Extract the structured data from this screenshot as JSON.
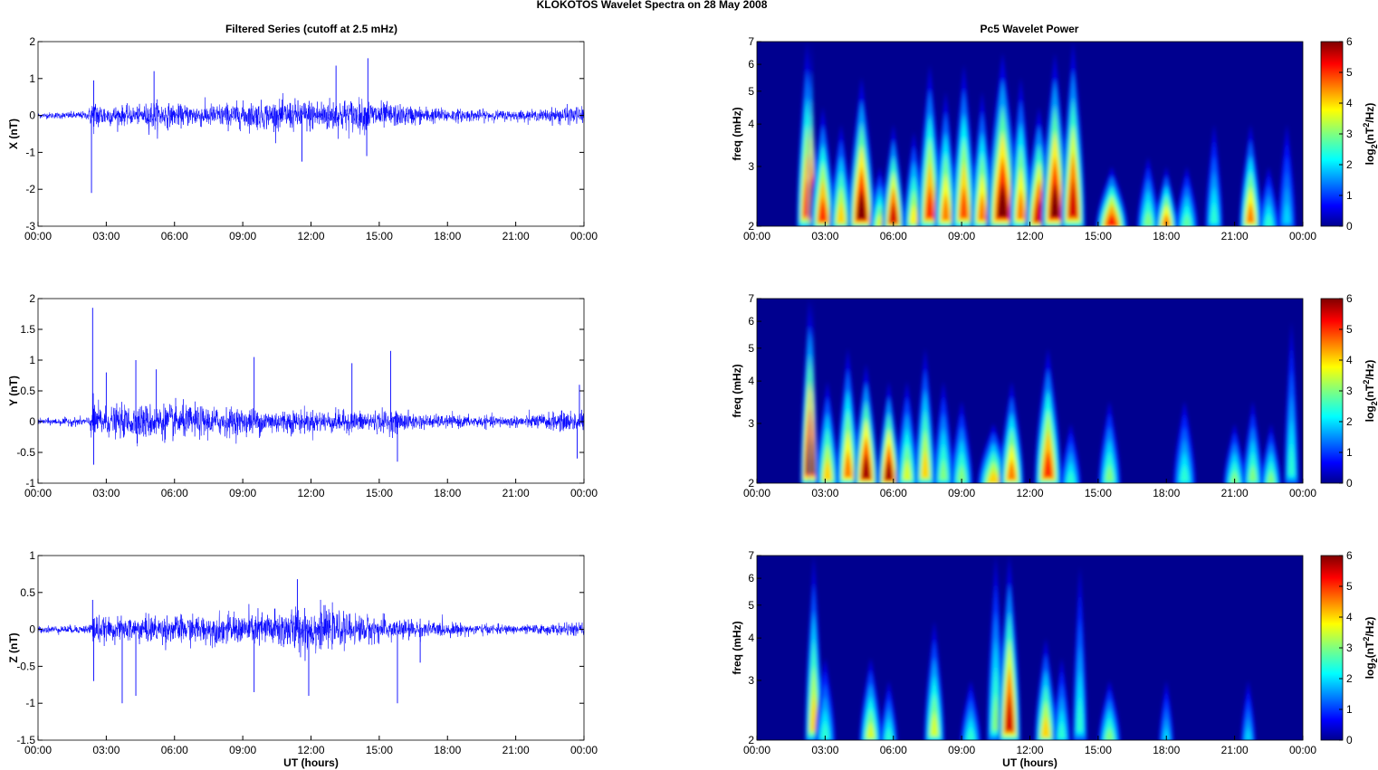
{
  "figure": {
    "title": "KLOKOTOS Wavelet Spectra on 28 May      2008",
    "left_title": "Filtered Series (cutoff at 2.5 mHz)",
    "right_title": "Pc5 Wavelet Power"
  },
  "colors": {
    "trace": "#0000ff",
    "axis": "#000000",
    "colormap": "jet",
    "background_power": "#00008f"
  },
  "chart_data": [
    {
      "type": "line",
      "panel": "X",
      "ylabel": "X (nT)",
      "xlabel": "",
      "ylim": [
        -3,
        2
      ],
      "yticks": [
        "2",
        "1",
        "0",
        "-1",
        "-2",
        "-3"
      ],
      "xticks": [
        "00:00",
        "03:00",
        "06:00",
        "09:00",
        "12:00",
        "15:00",
        "18:00",
        "21:00",
        "00:00"
      ],
      "xlim_hours": [
        0,
        24
      ],
      "grid": false,
      "trace": {
        "baseline": 0,
        "env_hours": [
          0,
          2.2,
          2.4,
          3,
          4.5,
          5,
          6,
          8,
          10,
          11.5,
          13,
          14.5,
          16,
          18,
          20,
          22,
          23,
          24
        ],
        "env_amplitude": [
          0.08,
          0.12,
          0.5,
          0.3,
          0.25,
          0.45,
          0.3,
          0.35,
          0.4,
          0.45,
          0.5,
          0.45,
          0.3,
          0.2,
          0.15,
          0.15,
          0.25,
          0.25
        ],
        "spikes": [
          {
            "hour": 2.35,
            "value": -2.1
          },
          {
            "hour": 2.45,
            "value": 0.95
          },
          {
            "hour": 5.1,
            "value": 1.2
          },
          {
            "hour": 11.6,
            "value": -1.25
          },
          {
            "hour": 13.1,
            "value": 1.35
          },
          {
            "hour": 14.5,
            "value": 1.55
          },
          {
            "hour": 14.45,
            "value": -1.1
          }
        ]
      }
    },
    {
      "type": "heatmap",
      "panel": "X",
      "ylabel": "freq (mHz)",
      "xlabel": "",
      "yscale": "log",
      "ylim": [
        2,
        7
      ],
      "yticks": [
        "7",
        "6",
        "5",
        "4",
        "3",
        "2"
      ],
      "xticks": [
        "00:00",
        "03:00",
        "06:00",
        "09:00",
        "12:00",
        "15:00",
        "18:00",
        "21:00",
        "00:00"
      ],
      "colorbar": {
        "label": "log2(nT²/Hz)",
        "range": [
          0,
          6
        ],
        "ticks": [
          "6",
          "5",
          "4",
          "3",
          "2",
          "1",
          "0"
        ]
      },
      "bursts": [
        {
          "hour": 2.2,
          "power": 5.0,
          "top_mHz": 7,
          "width_h": 0.18
        },
        {
          "hour": 2.4,
          "power": 6.0,
          "top_mHz": 7,
          "width_h": 0.05
        },
        {
          "hour": 2.9,
          "power": 5.0,
          "top_mHz": 4.5,
          "width_h": 0.22
        },
        {
          "hour": 3.7,
          "power": 4.0,
          "top_mHz": 4.0,
          "width_h": 0.2
        },
        {
          "hour": 4.6,
          "power": 6.0,
          "top_mHz": 5.5,
          "width_h": 0.25
        },
        {
          "hour": 5.4,
          "power": 3.5,
          "top_mHz": 3.0,
          "width_h": 0.18
        },
        {
          "hour": 6.0,
          "power": 5.5,
          "top_mHz": 4.0,
          "width_h": 0.2
        },
        {
          "hour": 6.9,
          "power": 3.8,
          "top_mHz": 3.8,
          "width_h": 0.18
        },
        {
          "hour": 7.6,
          "power": 5.0,
          "top_mHz": 6.0,
          "width_h": 0.22
        },
        {
          "hour": 8.3,
          "power": 4.5,
          "top_mHz": 5.0,
          "width_h": 0.2
        },
        {
          "hour": 9.1,
          "power": 4.8,
          "top_mHz": 6.0,
          "width_h": 0.22
        },
        {
          "hour": 9.9,
          "power": 4.5,
          "top_mHz": 5.0,
          "width_h": 0.2
        },
        {
          "hour": 10.8,
          "power": 6.0,
          "top_mHz": 6.5,
          "width_h": 0.3
        },
        {
          "hour": 11.6,
          "power": 4.5,
          "top_mHz": 5.5,
          "width_h": 0.2
        },
        {
          "hour": 12.4,
          "power": 5.5,
          "top_mHz": 4.5,
          "width_h": 0.25
        },
        {
          "hour": 13.1,
          "power": 6.0,
          "top_mHz": 6.5,
          "width_h": 0.25
        },
        {
          "hour": 13.9,
          "power": 5.5,
          "top_mHz": 7.0,
          "width_h": 0.22
        },
        {
          "hour": 15.6,
          "power": 5.2,
          "top_mHz": 3.0,
          "width_h": 0.3
        },
        {
          "hour": 17.2,
          "power": 3.0,
          "top_mHz": 3.2,
          "width_h": 0.2
        },
        {
          "hour": 18.0,
          "power": 4.5,
          "top_mHz": 3.0,
          "width_h": 0.2
        },
        {
          "hour": 18.9,
          "power": 2.8,
          "top_mHz": 3.0,
          "width_h": 0.2
        },
        {
          "hour": 20.1,
          "power": 2.5,
          "top_mHz": 4.0,
          "width_h": 0.15
        },
        {
          "hour": 21.7,
          "power": 4.5,
          "top_mHz": 4.0,
          "width_h": 0.2
        },
        {
          "hour": 22.5,
          "power": 2.5,
          "top_mHz": 3.0,
          "width_h": 0.18
        },
        {
          "hour": 23.3,
          "power": 2.0,
          "top_mHz": 4.0,
          "width_h": 0.15
        }
      ]
    },
    {
      "type": "line",
      "panel": "Y",
      "ylabel": "Y (nT)",
      "xlabel": "",
      "ylim": [
        -1,
        2
      ],
      "yticks": [
        "2",
        "1.5",
        "1",
        "0.5",
        "0",
        "-0.5",
        "-1"
      ],
      "xticks": [
        "00:00",
        "03:00",
        "06:00",
        "09:00",
        "12:00",
        "15:00",
        "18:00",
        "21:00",
        "00:00"
      ],
      "xlim_hours": [
        0,
        24
      ],
      "grid": false,
      "trace": {
        "baseline": 0,
        "env_hours": [
          0,
          2.2,
          2.4,
          3,
          4.5,
          6,
          8,
          10,
          12,
          14,
          15.5,
          17,
          19,
          21,
          22.5,
          24
        ],
        "env_amplitude": [
          0.05,
          0.08,
          0.35,
          0.25,
          0.3,
          0.3,
          0.25,
          0.22,
          0.2,
          0.18,
          0.2,
          0.12,
          0.1,
          0.1,
          0.15,
          0.2
        ],
        "spikes": [
          {
            "hour": 2.4,
            "value": 1.85
          },
          {
            "hour": 2.45,
            "value": -0.7
          },
          {
            "hour": 3.0,
            "value": 0.8
          },
          {
            "hour": 4.3,
            "value": 1.0
          },
          {
            "hour": 5.2,
            "value": 0.85
          },
          {
            "hour": 9.5,
            "value": 1.05
          },
          {
            "hour": 13.8,
            "value": 0.95
          },
          {
            "hour": 15.5,
            "value": 1.15
          },
          {
            "hour": 15.8,
            "value": -0.65
          },
          {
            "hour": 23.8,
            "value": 0.6
          },
          {
            "hour": 23.7,
            "value": -0.6
          }
        ]
      }
    },
    {
      "type": "heatmap",
      "panel": "Y",
      "ylabel": "freq (mHz)",
      "xlabel": "",
      "yscale": "log",
      "ylim": [
        2,
        7
      ],
      "yticks": [
        "7",
        "6",
        "5",
        "4",
        "3",
        "2"
      ],
      "xticks": [
        "00:00",
        "03:00",
        "06:00",
        "09:00",
        "12:00",
        "15:00",
        "18:00",
        "21:00",
        "00:00"
      ],
      "colorbar": {
        "label": "log2(nT²/Hz)",
        "range": [
          0,
          6
        ],
        "ticks": [
          "6",
          "5",
          "4",
          "3",
          "2",
          "1",
          "0"
        ]
      },
      "bursts": [
        {
          "hour": 2.3,
          "power": 6.0,
          "top_mHz": 7,
          "width_h": 0.15
        },
        {
          "hour": 2.45,
          "power": 6.0,
          "top_mHz": 7,
          "width_h": 0.04
        },
        {
          "hour": 3.1,
          "power": 4.0,
          "top_mHz": 4.0,
          "width_h": 0.2
        },
        {
          "hour": 4.0,
          "power": 4.5,
          "top_mHz": 5.0,
          "width_h": 0.2
        },
        {
          "hour": 4.8,
          "power": 5.8,
          "top_mHz": 4.5,
          "width_h": 0.22
        },
        {
          "hour": 5.8,
          "power": 5.8,
          "top_mHz": 4.0,
          "width_h": 0.2
        },
        {
          "hour": 6.6,
          "power": 3.5,
          "top_mHz": 4.0,
          "width_h": 0.2
        },
        {
          "hour": 7.4,
          "power": 4.0,
          "top_mHz": 5.0,
          "width_h": 0.18
        },
        {
          "hour": 8.2,
          "power": 3.0,
          "top_mHz": 4.0,
          "width_h": 0.18
        },
        {
          "hour": 9.0,
          "power": 3.0,
          "top_mHz": 3.5,
          "width_h": 0.2
        },
        {
          "hour": 10.4,
          "power": 4.0,
          "top_mHz": 3.0,
          "width_h": 0.3
        },
        {
          "hour": 11.2,
          "power": 4.5,
          "top_mHz": 4.0,
          "width_h": 0.22
        },
        {
          "hour": 12.8,
          "power": 5.0,
          "top_mHz": 5.0,
          "width_h": 0.25
        },
        {
          "hour": 13.8,
          "power": 2.5,
          "top_mHz": 3.0,
          "width_h": 0.18
        },
        {
          "hour": 15.5,
          "power": 3.0,
          "top_mHz": 3.5,
          "width_h": 0.2
        },
        {
          "hour": 18.8,
          "power": 2.5,
          "top_mHz": 3.5,
          "width_h": 0.2
        },
        {
          "hour": 21.0,
          "power": 3.0,
          "top_mHz": 3.0,
          "width_h": 0.2
        },
        {
          "hour": 21.8,
          "power": 3.0,
          "top_mHz": 3.5,
          "width_h": 0.18
        },
        {
          "hour": 22.6,
          "power": 3.0,
          "top_mHz": 3.0,
          "width_h": 0.18
        },
        {
          "hour": 23.5,
          "power": 2.5,
          "top_mHz": 6.0,
          "width_h": 0.12
        }
      ]
    },
    {
      "type": "line",
      "panel": "Z",
      "ylabel": "Z (nT)",
      "xlabel": "UT (hours)",
      "ylim": [
        -1.5,
        1
      ],
      "yticks": [
        "1",
        "0.5",
        "0",
        "-0.5",
        "-1",
        "-1.5"
      ],
      "xticks": [
        "00:00",
        "03:00",
        "06:00",
        "09:00",
        "12:00",
        "15:00",
        "18:00",
        "21:00",
        "00:00"
      ],
      "xlim_hours": [
        0,
        24
      ],
      "grid": false,
      "trace": {
        "baseline": 0,
        "env_hours": [
          0,
          2.2,
          2.4,
          3,
          5,
          7,
          9,
          11,
          11.8,
          13,
          15,
          17,
          19,
          21,
          23,
          24
        ],
        "env_amplitude": [
          0.05,
          0.06,
          0.25,
          0.15,
          0.2,
          0.2,
          0.22,
          0.3,
          0.35,
          0.25,
          0.18,
          0.12,
          0.08,
          0.06,
          0.08,
          0.1
        ],
        "spikes": [
          {
            "hour": 2.4,
            "value": 0.4
          },
          {
            "hour": 2.45,
            "value": -0.7
          },
          {
            "hour": 3.7,
            "value": -1.0
          },
          {
            "hour": 4.3,
            "value": -0.9
          },
          {
            "hour": 9.5,
            "value": -0.85
          },
          {
            "hour": 11.4,
            "value": 0.68
          },
          {
            "hour": 11.9,
            "value": -0.9
          },
          {
            "hour": 15.8,
            "value": -1.0
          },
          {
            "hour": 16.8,
            "value": -0.45
          }
        ]
      }
    },
    {
      "type": "heatmap",
      "panel": "Z",
      "ylabel": "freq (mHz)",
      "xlabel": "UT (hours)",
      "yscale": "log",
      "ylim": [
        2,
        7
      ],
      "yticks": [
        "7",
        "6",
        "5",
        "4",
        "3",
        "2"
      ],
      "xticks": [
        "00:00",
        "03:00",
        "06:00",
        "09:00",
        "12:00",
        "15:00",
        "18:00",
        "21:00",
        "00:00"
      ],
      "colorbar": {
        "label": "log2(nT²/Hz)",
        "range": [
          0,
          6
        ],
        "ticks": [
          "6",
          "5",
          "4",
          "3",
          "2",
          "1",
          "0"
        ]
      },
      "bursts": [
        {
          "hour": 2.5,
          "power": 4.0,
          "top_mHz": 7.0,
          "width_h": 0.15
        },
        {
          "hour": 3.0,
          "power": 2.5,
          "top_mHz": 3.5,
          "width_h": 0.18
        },
        {
          "hour": 5.0,
          "power": 3.5,
          "top_mHz": 3.5,
          "width_h": 0.2
        },
        {
          "hour": 5.8,
          "power": 2.5,
          "top_mHz": 3.0,
          "width_h": 0.15
        },
        {
          "hour": 7.8,
          "power": 3.5,
          "top_mHz": 4.5,
          "width_h": 0.18
        },
        {
          "hour": 9.4,
          "power": 2.5,
          "top_mHz": 3.0,
          "width_h": 0.18
        },
        {
          "hour": 10.5,
          "power": 3.0,
          "top_mHz": 7.0,
          "width_h": 0.15
        },
        {
          "hour": 11.1,
          "power": 5.5,
          "top_mHz": 7.0,
          "width_h": 0.2
        },
        {
          "hour": 12.7,
          "power": 4.0,
          "top_mHz": 4.0,
          "width_h": 0.2
        },
        {
          "hour": 13.4,
          "power": 2.5,
          "top_mHz": 3.5,
          "width_h": 0.15
        },
        {
          "hour": 14.2,
          "power": 2.5,
          "top_mHz": 6.5,
          "width_h": 0.12
        },
        {
          "hour": 15.5,
          "power": 3.0,
          "top_mHz": 3.0,
          "width_h": 0.2
        },
        {
          "hour": 18.0,
          "power": 2.0,
          "top_mHz": 3.0,
          "width_h": 0.12
        },
        {
          "hour": 21.6,
          "power": 2.0,
          "top_mHz": 3.0,
          "width_h": 0.12
        }
      ]
    }
  ]
}
